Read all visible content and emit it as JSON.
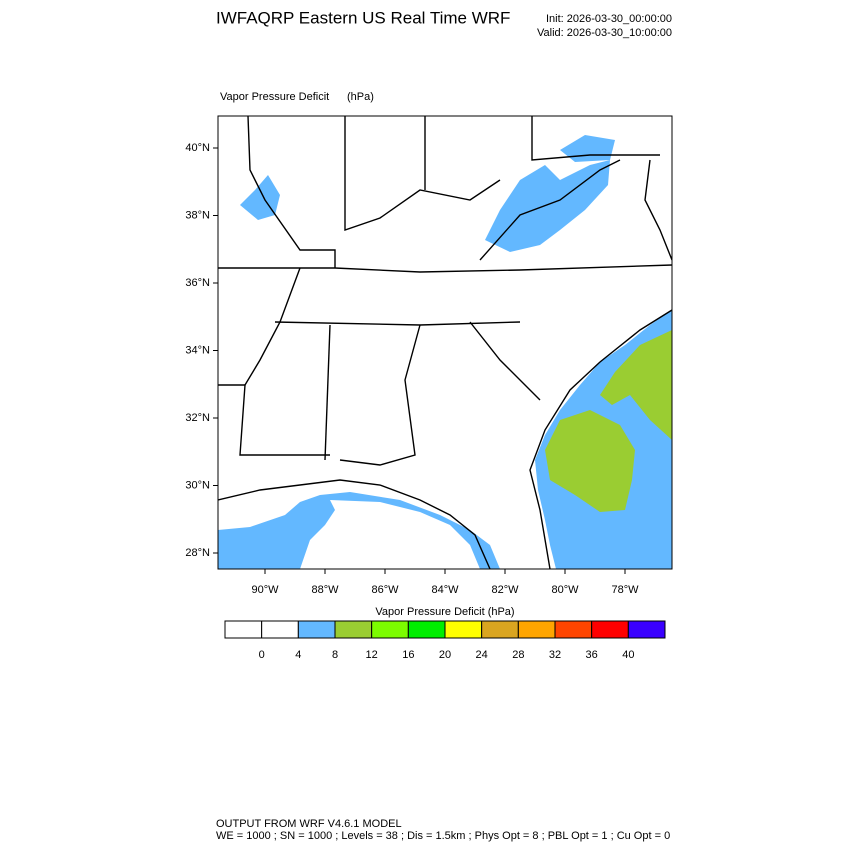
{
  "header": {
    "title": "IWFAQRP Eastern US Real Time WRF",
    "init": "Init: 2026-03-30_00:00:00",
    "valid": "Valid: 2026-03-30_10:00:00"
  },
  "map": {
    "field": "Vapor Pressure Deficit",
    "units": "(hPa)",
    "lat_labels": [
      "40°N",
      "38°N",
      "36°N",
      "34°N",
      "32°N",
      "30°N",
      "28°N"
    ],
    "lon_labels": [
      "90°W",
      "88°W",
      "86°W",
      "84°W",
      "82°W",
      "80°W",
      "78°W"
    ]
  },
  "colorbar": {
    "title": "Vapor Pressure Deficit  (hPa)",
    "colors": [
      "#ffffff",
      "#ffffff",
      "#63b8ff",
      "#9acd32",
      "#7cfc00",
      "#00ee00",
      "#ffff00",
      "#daa520",
      "#ffa500",
      "#ff4500",
      "#ff0000",
      "#3a00ff"
    ],
    "labels": [
      "0",
      "4",
      "8",
      "12",
      "16",
      "20",
      "24",
      "28",
      "32",
      "36",
      "40"
    ]
  },
  "footer": {
    "line1": "OUTPUT FROM WRF V4.6.1 MODEL",
    "line2": "WE = 1000 ; SN = 1000 ; Levels = 38 ; Dis = 1.5km ; Phys Opt = 8 ; PBL Opt = 1 ; Cu Opt = 0"
  }
}
